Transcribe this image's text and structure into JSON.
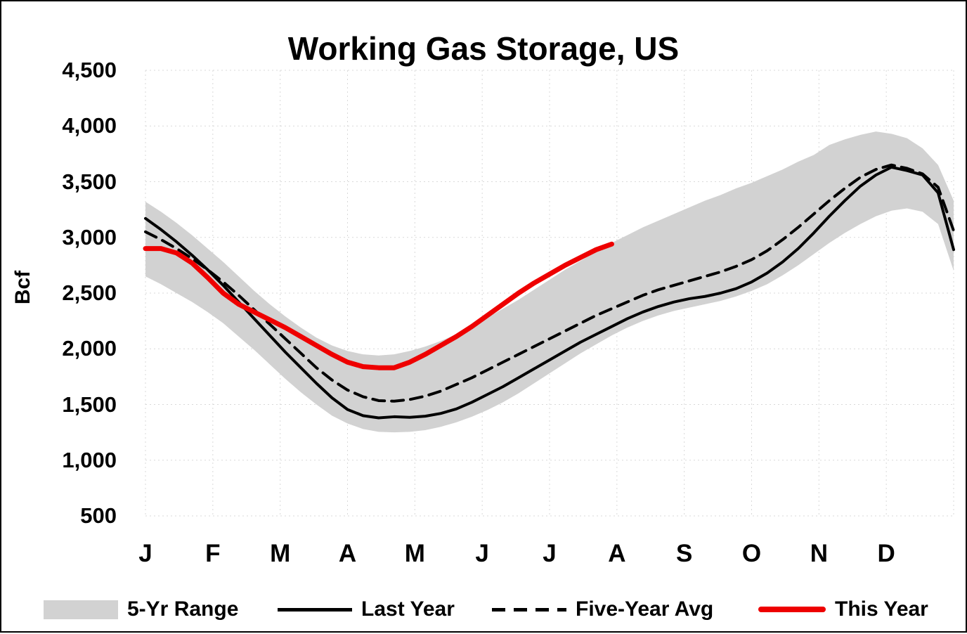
{
  "chart": {
    "title": "Working Gas Storage, US",
    "y_axis_title": "Bcf",
    "legend": [
      {
        "label": "5-Yr Range"
      },
      {
        "label": "Last Year"
      },
      {
        "label": "Five-Year Avg"
      },
      {
        "label": "This Year"
      }
    ],
    "colors": {
      "range_band": "#d2d2d2",
      "last_year": "#000000",
      "five_year_avg": "#000000",
      "this_year": "#ee0000",
      "gridline": "#d9d9d9"
    }
  },
  "chart_data": {
    "type": "line",
    "title": "Working Gas Storage, US",
    "ylabel": "Bcf",
    "unit": "Bcf",
    "ylim": [
      500,
      4500
    ],
    "y_tick_interval": 500,
    "y_ticks": [
      {
        "value": 4500,
        "label": "4,500"
      },
      {
        "value": 4000,
        "label": "4,000"
      },
      {
        "value": 3500,
        "label": "3,500"
      },
      {
        "value": 3000,
        "label": "3,000"
      },
      {
        "value": 2500,
        "label": "2,500"
      },
      {
        "value": 2000,
        "label": "2,000"
      },
      {
        "value": 1500,
        "label": "1,500"
      },
      {
        "value": 1000,
        "label": "1,000"
      },
      {
        "value": 500,
        "label": "500"
      }
    ],
    "x_tick_labels": [
      "J",
      "F",
      "M",
      "A",
      "M",
      "J",
      "J",
      "A",
      "S",
      "O",
      "N",
      "D"
    ],
    "x_unit": "weekly, Jan through Dec (values estimated from plot)",
    "grid": true,
    "legend_position": "bottom",
    "series": [
      {
        "name": "5-Yr Range",
        "type": "band",
        "color": "#d2d2d2",
        "upper": [
          3320,
          3230,
          3130,
          3020,
          2900,
          2780,
          2650,
          2520,
          2400,
          2290,
          2190,
          2100,
          2030,
          1980,
          1950,
          1940,
          1950,
          1980,
          2020,
          2070,
          2130,
          2200,
          2280,
          2360,
          2440,
          2530,
          2620,
          2710,
          2790,
          2870,
          2950,
          3020,
          3090,
          3150,
          3210,
          3270,
          3330,
          3380,
          3440,
          3490,
          3550,
          3610,
          3680,
          3740,
          3830,
          3880,
          3920,
          3950,
          3930,
          3890,
          3800,
          3650,
          3330
        ],
        "lower": [
          2650,
          2580,
          2500,
          2420,
          2330,
          2230,
          2110,
          1990,
          1860,
          1730,
          1610,
          1500,
          1400,
          1330,
          1280,
          1255,
          1250,
          1255,
          1270,
          1300,
          1340,
          1390,
          1450,
          1520,
          1600,
          1690,
          1780,
          1870,
          1960,
          2040,
          2120,
          2190,
          2250,
          2300,
          2340,
          2370,
          2400,
          2430,
          2470,
          2520,
          2580,
          2660,
          2750,
          2850,
          2950,
          3040,
          3120,
          3190,
          3240,
          3260,
          3230,
          3120,
          2700
        ]
      },
      {
        "name": "Last Year",
        "type": "line",
        "style": "solid",
        "color": "#000000",
        "width": 4,
        "values": [
          3170,
          3070,
          2960,
          2840,
          2710,
          2570,
          2420,
          2270,
          2120,
          1970,
          1830,
          1690,
          1560,
          1455,
          1400,
          1380,
          1390,
          1385,
          1395,
          1420,
          1460,
          1520,
          1590,
          1660,
          1740,
          1820,
          1900,
          1980,
          2060,
          2130,
          2200,
          2270,
          2330,
          2380,
          2420,
          2450,
          2470,
          2500,
          2540,
          2600,
          2680,
          2780,
          2900,
          3040,
          3190,
          3330,
          3460,
          3560,
          3630,
          3600,
          3560,
          3400,
          2890
        ]
      },
      {
        "name": "Five-Year Avg",
        "type": "line",
        "style": "dashed",
        "color": "#000000",
        "width": 4,
        "values": [
          3050,
          2980,
          2900,
          2810,
          2710,
          2600,
          2480,
          2350,
          2220,
          2090,
          1960,
          1830,
          1720,
          1630,
          1570,
          1535,
          1530,
          1545,
          1575,
          1620,
          1680,
          1740,
          1810,
          1880,
          1950,
          2020,
          2090,
          2160,
          2230,
          2300,
          2360,
          2420,
          2480,
          2530,
          2570,
          2610,
          2650,
          2690,
          2740,
          2800,
          2880,
          2980,
          3090,
          3210,
          3330,
          3440,
          3540,
          3610,
          3650,
          3620,
          3570,
          3450,
          3060
        ]
      },
      {
        "name": "This Year",
        "type": "line",
        "style": "solid",
        "color": "#ee0000",
        "width": 7,
        "values": [
          2900,
          2900,
          2860,
          2770,
          2640,
          2500,
          2400,
          2330,
          2260,
          2190,
          2110,
          2030,
          1950,
          1880,
          1840,
          1830,
          1830,
          1880,
          1950,
          2030,
          2110,
          2200,
          2300,
          2400,
          2500,
          2590,
          2670,
          2750,
          2820,
          2890,
          2940
        ]
      }
    ]
  }
}
